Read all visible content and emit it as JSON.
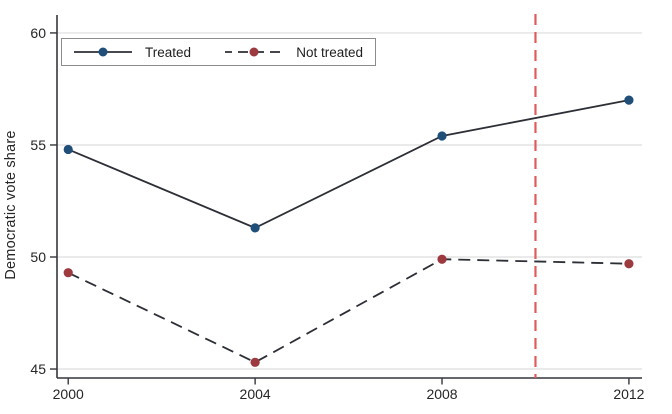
{
  "chart_data": {
    "type": "line",
    "title": "",
    "xlabel": "",
    "ylabel": "Democratic vote share",
    "x": [
      2000,
      2004,
      2008,
      2012
    ],
    "series": [
      {
        "name": "Treated",
        "values": [
          54.8,
          51.3,
          55.4,
          57.0
        ],
        "line_style": "solid",
        "line_color": "#2d2f36",
        "marker_color": "#1f4e79"
      },
      {
        "name": "Not treated",
        "values": [
          49.3,
          45.3,
          49.9,
          49.7
        ],
        "line_style": "dashed",
        "line_color": "#2d2f36",
        "marker_color": "#9c3a40"
      }
    ],
    "vline": {
      "x": 2010,
      "style": "dashed",
      "color": "#e05c5c"
    },
    "xticks": [
      2000,
      2004,
      2008,
      2012
    ],
    "yticks": [
      45,
      50,
      55,
      60
    ],
    "xlim": [
      1999.76,
      2012.28
    ],
    "ylim": [
      44.6,
      60.8
    ],
    "grid": true,
    "legend_position": "top-left"
  },
  "style_colors": {
    "grid": "#dedede",
    "axis": "#35373d",
    "text": "#262626",
    "legend_border": "#8c8c8c",
    "background": "#ffffff"
  }
}
